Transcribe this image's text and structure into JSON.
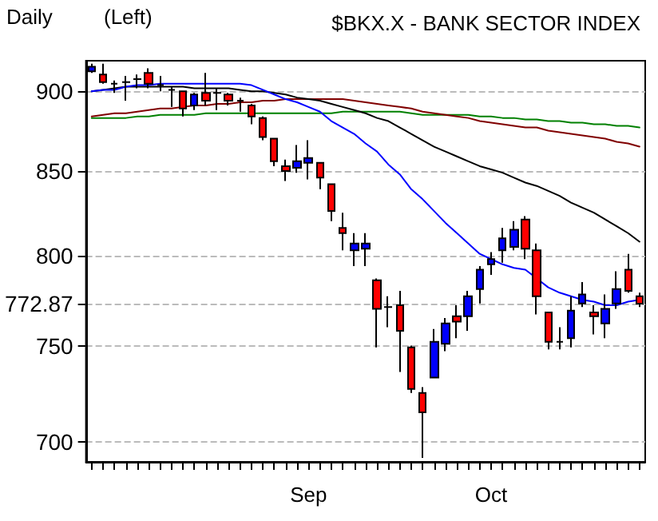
{
  "chart_data": {
    "type": "candlestick",
    "title": "$BKX.X - BANK SECTOR INDEX",
    "annotations": [
      "Daily",
      "(Left)"
    ],
    "categories": [
      null,
      null,
      null,
      null,
      null,
      null,
      null,
      null,
      null,
      null,
      null,
      null,
      null,
      null,
      null,
      null,
      null,
      null,
      null,
      "Sep",
      null,
      null,
      null,
      null,
      null,
      null,
      null,
      null,
      null,
      null,
      null,
      null,
      null,
      null,
      null,
      "Oct",
      null,
      null,
      null,
      null,
      null,
      null,
      null,
      null,
      null,
      null,
      null,
      null,
      null
    ],
    "ohlc": [
      [
        913,
        918,
        912,
        916
      ],
      [
        911,
        918,
        905,
        906
      ],
      [
        905,
        907,
        899,
        905
      ],
      [
        906,
        910,
        894,
        906
      ],
      [
        908,
        911,
        902,
        908
      ],
      [
        912,
        915,
        902,
        905
      ],
      [
        904,
        910,
        900,
        904
      ],
      [
        901,
        903,
        890,
        901
      ],
      [
        900,
        900,
        884,
        889
      ],
      [
        891,
        899,
        888,
        898
      ],
      [
        899,
        912,
        891,
        894
      ],
      [
        899,
        902,
        888,
        899
      ],
      [
        898,
        899,
        891,
        894
      ],
      [
        894,
        896,
        887,
        894
      ],
      [
        891,
        892,
        879,
        884
      ],
      [
        883,
        884,
        869,
        871
      ],
      [
        870,
        870,
        853,
        856
      ],
      [
        853,
        857,
        844,
        850
      ],
      [
        852,
        866,
        849,
        856
      ],
      [
        855,
        869,
        845,
        858
      ],
      [
        855,
        855,
        839,
        846
      ],
      [
        842,
        842,
        820,
        826
      ],
      [
        816,
        825,
        803,
        813
      ],
      [
        803,
        813,
        794,
        807
      ],
      [
        804,
        813,
        794,
        807
      ],
      [
        786,
        787,
        749,
        770
      ],
      [
        771,
        777,
        760,
        771
      ],
      [
        772,
        780,
        736,
        758
      ],
      [
        749,
        750,
        725,
        727
      ],
      [
        725,
        728,
        692,
        715
      ],
      [
        733,
        759,
        733,
        752
      ],
      [
        751,
        765,
        747,
        762
      ],
      [
        766,
        772,
        754,
        763
      ],
      [
        766,
        780,
        758,
        777
      ],
      [
        781,
        794,
        773,
        792
      ],
      [
        795,
        802,
        789,
        798
      ],
      [
        803,
        816,
        796,
        810
      ],
      [
        805,
        820,
        803,
        815
      ],
      [
        821,
        823,
        798,
        804
      ],
      [
        803,
        807,
        767,
        777
      ],
      [
        768,
        768,
        748,
        752
      ],
      [
        752,
        760,
        748,
        752
      ],
      [
        754,
        777,
        749,
        769
      ],
      [
        773,
        785,
        771,
        778
      ],
      [
        768,
        772,
        756,
        766
      ],
      [
        762,
        778,
        754,
        770
      ],
      [
        773,
        791,
        770,
        781
      ],
      [
        792,
        801,
        779,
        780
      ],
      [
        777,
        779,
        771,
        772.87
      ]
    ],
    "colors": [
      "#0000ff",
      "#ff0000",
      "#000000",
      "#000000",
      "#000000",
      "#ff0000",
      "#000000",
      "#000000",
      "#ff0000",
      "#0000ff",
      "#ff0000",
      "#000000",
      "#ff0000",
      "#000000",
      "#ff0000",
      "#ff0000",
      "#ff0000",
      "#ff0000",
      "#0000ff",
      "#0000ff",
      "#ff0000",
      "#ff0000",
      "#ff0000",
      "#0000ff",
      "#0000ff",
      "#ff0000",
      "#000000",
      "#ff0000",
      "#ff0000",
      "#ff0000",
      "#0000ff",
      "#0000ff",
      "#ff0000",
      "#0000ff",
      "#0000ff",
      "#0000ff",
      "#0000ff",
      "#0000ff",
      "#ff0000",
      "#ff0000",
      "#ff0000",
      "#000000",
      "#0000ff",
      "#0000ff",
      "#ff0000",
      "#0000ff",
      "#0000ff",
      "#ff0000",
      "#ff0000"
    ],
    "series": [
      {
        "type": "line",
        "color": "#008000",
        "values": [
          883,
          883,
          883,
          883,
          884,
          884,
          885,
          885,
          885,
          885,
          886,
          886,
          886,
          886,
          886,
          886,
          886,
          886,
          886,
          886,
          886,
          886,
          887,
          887,
          887,
          887,
          887,
          887,
          886,
          885,
          885,
          885,
          885,
          885,
          884,
          884,
          883,
          883,
          882,
          882,
          881,
          881,
          880,
          880,
          879,
          879,
          878,
          878,
          877
        ]
      },
      {
        "type": "line",
        "color": "#800000",
        "values": [
          884,
          885,
          886,
          886,
          887,
          888,
          889,
          889,
          890,
          891,
          891,
          892,
          892,
          893,
          893,
          894,
          894,
          895,
          895,
          895,
          895,
          895,
          895,
          894,
          893,
          892,
          891,
          890,
          889,
          887,
          886,
          885,
          884,
          883,
          881,
          880,
          879,
          878,
          877,
          877,
          875,
          874,
          873,
          872,
          871,
          870,
          868,
          867,
          865
        ]
      },
      {
        "type": "line",
        "color": "#000000",
        "values": [
          900,
          901,
          902,
          903,
          903,
          903,
          903,
          903,
          903,
          902,
          902,
          902,
          902,
          901,
          900,
          900,
          899,
          898,
          896,
          895,
          894,
          892,
          890,
          888,
          886,
          883,
          881,
          877,
          873,
          869,
          865,
          862,
          859,
          856,
          853,
          851,
          849,
          846,
          843,
          841,
          838,
          835,
          831,
          828,
          825,
          821,
          817,
          813,
          808
        ]
      },
      {
        "type": "line",
        "color": "#0000ff",
        "values": [
          900,
          901,
          901,
          903,
          904,
          904,
          905,
          905,
          905,
          905,
          905,
          905,
          905,
          905,
          904,
          901,
          898,
          895,
          893,
          890,
          887,
          881,
          877,
          873,
          867,
          862,
          854,
          848,
          839,
          833,
          826,
          819,
          813,
          807,
          801,
          798,
          795,
          793,
          792,
          787,
          782,
          779,
          777,
          775,
          774,
          772,
          772,
          774,
          775
        ]
      }
    ],
    "ylim": [
      690,
      920
    ],
    "yticks": [
      700,
      750,
      772.87,
      800,
      850,
      900
    ],
    "log": "y",
    "grid": "y",
    "marker": "none",
    "line_style": "solid"
  }
}
